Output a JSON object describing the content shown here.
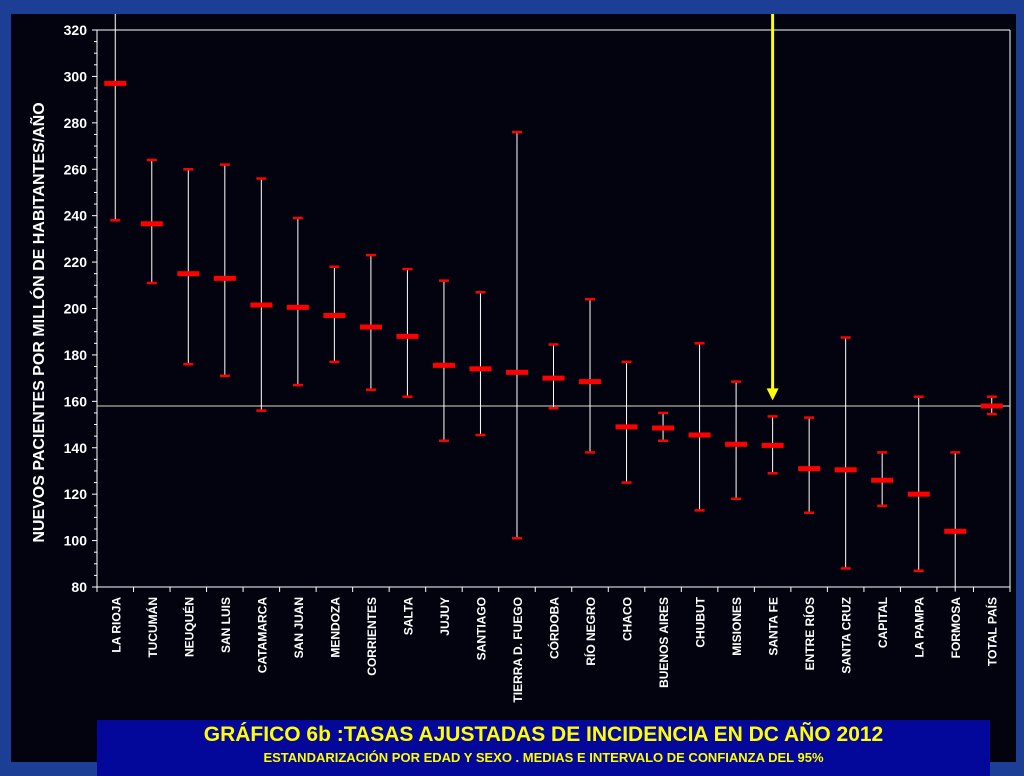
{
  "chart_data": {
    "type": "error-bar",
    "ylabel": "NUEVOS PACIENTES POR MILLÓN DE HABITANTES/AÑO",
    "xlabel": "",
    "ylim": [
      80,
      320
    ],
    "yticks": [
      80,
      100,
      120,
      140,
      160,
      180,
      200,
      220,
      240,
      260,
      280,
      300,
      320
    ],
    "grid": false,
    "legend": "none",
    "reference_line": 158,
    "highlight_category": "SANTA FE",
    "categories": [
      "LA RIOJA",
      "TUCUMÁN",
      "NEUQUÉN",
      "SAN LUIS",
      "CATAMARCA",
      "SAN JUAN",
      "MENDOZA",
      "CORRIENTES",
      "SALTA",
      "JUJUY",
      "SANTIAGO",
      "TIERRA D. FUEGO",
      "CÓRDOBA",
      "RÍO NEGRO",
      "CHACO",
      "BUENOS AIRES",
      "CHUBUT",
      "MISIONES",
      "SANTA FE",
      "ENTRE RÍOS",
      "SANTA CRUZ",
      "CAPITAL",
      "LA PAMPA",
      "FORMOSA",
      "TOTAL PAÍS"
    ],
    "series": [
      {
        "mean": [
          297,
          236.5,
          215,
          213,
          201.5,
          200.5,
          197,
          192,
          188,
          175.5,
          174,
          172.5,
          170,
          168.5,
          149,
          148.5,
          145.5,
          141.5,
          141,
          131,
          130.5,
          126,
          120,
          104,
          158
        ],
        "lower": [
          238,
          211,
          176,
          171,
          156,
          167,
          177,
          165,
          162,
          143,
          145.5,
          101,
          157,
          138,
          125,
          143,
          113,
          118,
          129,
          112,
          88,
          115,
          87,
          78,
          154.5
        ],
        "upper": [
          327,
          264,
          260,
          262,
          256,
          239,
          218,
          223,
          217,
          212,
          207,
          276,
          184.5,
          204,
          177,
          155,
          185,
          168.5,
          153.5,
          153,
          187.5,
          138,
          162,
          138,
          162
        ]
      }
    ],
    "colors": {
      "mean_marker": "#ff0000",
      "whisker": "#ffffff",
      "reference_line": "#d8d8c8",
      "arrow": "#ffff00",
      "text": "#ffffff"
    }
  },
  "caption": {
    "title": "GRÁFICO 6b :TASAS  AJUSTADAS  DE INCIDENCIA  EN DC AÑO 2012",
    "subtitle": "ESTANDARIZACIÓN POR EDAD Y SEXO . MEDIAS E INTERVALO DE CONFIANZA DEL 95%"
  }
}
